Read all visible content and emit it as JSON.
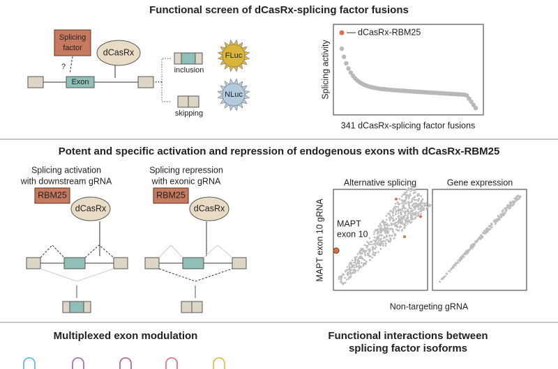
{
  "screen": {
    "title": "Functional screen of dCasRx-splicing factor fusions",
    "splicing_factor": [
      "Splicing",
      "factor"
    ],
    "dcasrx": "dCasRx",
    "question": "?",
    "exon": "Exon",
    "inclusion": "inclusion",
    "skipping": "skipping",
    "fluc": "FLuc",
    "nluc": "NLuc",
    "hit": "dCasRx-RBM25",
    "y_label": "Splicing activity",
    "x_label": "341 dCasRx-splicing factor fusions"
  },
  "activation": {
    "title": "Potent and specific activation and repression of endogenous exons with dCasRx-RBM25",
    "left_caption": [
      "Splicing activation",
      "with downstream gRNA"
    ],
    "right_caption": [
      "Splicing repression",
      "with exonic gRNA"
    ],
    "rbm25": "RBM25",
    "dcasrx": "dCasRx",
    "panel_titles": [
      "Alternative splicing",
      "Gene expression"
    ],
    "y_label": "MAPT exon 10 gRNA",
    "x_label": "Non-targeting gRNA",
    "hit": [
      "MAPT",
      "exon 10"
    ]
  },
  "bottom": {
    "left_title": "Multiplexed exon modulation",
    "right_title": [
      "Functional interactions between",
      "splicing factor isoforms"
    ]
  }
}
